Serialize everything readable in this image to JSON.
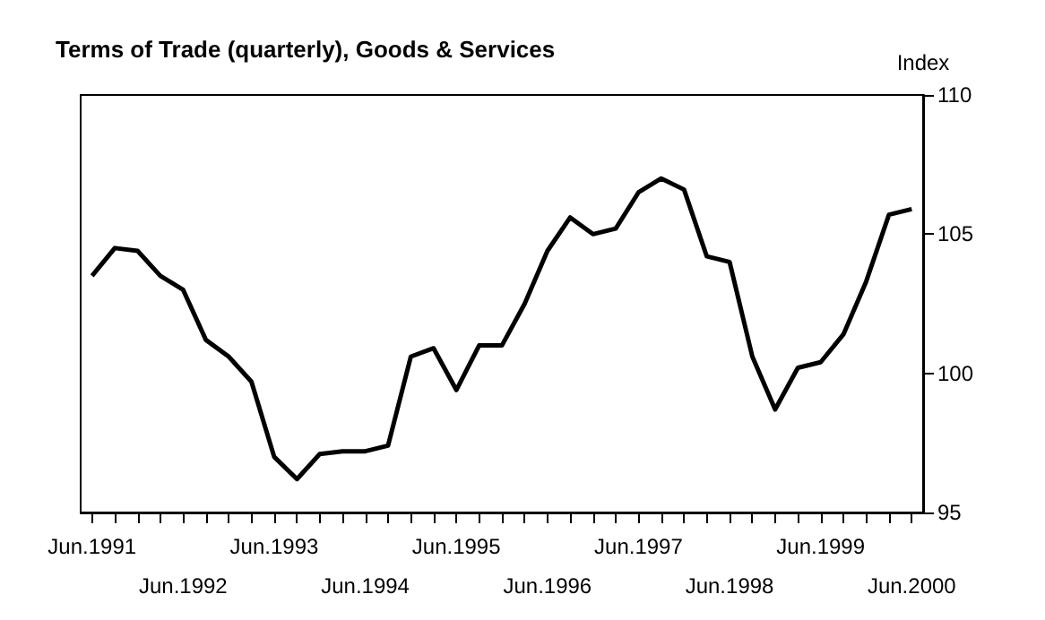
{
  "chart_data": {
    "type": "line",
    "title": "Terms of Trade (quarterly), Goods & Services",
    "ylabel": "Index",
    "categories": [
      "Jun.1991",
      null,
      null,
      null,
      "Jun.1992",
      null,
      null,
      null,
      "Jun.1993",
      null,
      null,
      null,
      "Jun.1994",
      null,
      null,
      null,
      "Jun.1995",
      null,
      null,
      null,
      "Jun.1996",
      null,
      null,
      null,
      "Jun.1997",
      null,
      null,
      null,
      "Jun.1998",
      null,
      null,
      null,
      "Jun.1999",
      null,
      null,
      null,
      "Jun.2000"
    ],
    "series": [
      {
        "color": "#000000",
        "values": [
          103.5,
          104.5,
          104.4,
          103.5,
          103.0,
          101.2,
          100.6,
          99.7,
          97.0,
          96.2,
          97.1,
          97.2,
          97.2,
          97.4,
          100.6,
          100.9,
          99.4,
          101.0,
          101.0,
          102.5,
          104.4,
          105.6,
          105.0,
          105.2,
          106.5,
          107.0,
          106.6,
          104.2,
          104.0,
          100.6,
          98.7,
          100.2,
          100.4,
          101.4,
          103.3,
          105.7,
          105.9
        ]
      }
    ],
    "ylim": [
      95,
      110
    ],
    "yticks": [
      95,
      100,
      105,
      110
    ],
    "grid": false,
    "marker": "none",
    "line_style": "solid"
  }
}
